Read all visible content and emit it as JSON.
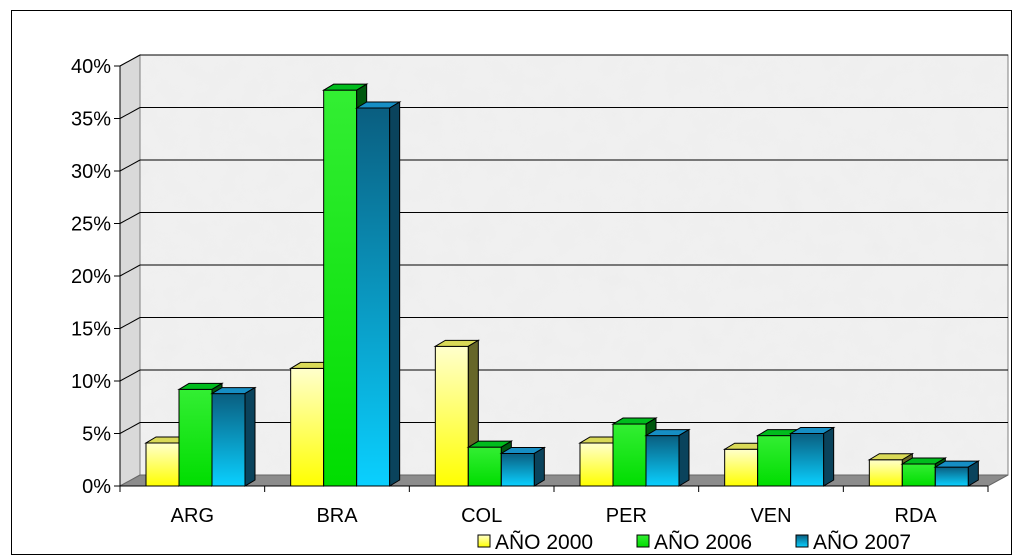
{
  "chart_data": {
    "type": "bar",
    "categories": [
      "ARG",
      "BRA",
      "COL",
      "PER",
      "VEN",
      "RDA"
    ],
    "series": [
      {
        "name": "AÑO 2000",
        "values": [
          4.1,
          11.2,
          13.3,
          4.1,
          3.5,
          2.5
        ],
        "color": "#ffff66"
      },
      {
        "name": "AÑO 2006",
        "values": [
          9.2,
          37.7,
          3.7,
          5.9,
          4.8,
          2.1
        ],
        "color": "#00dd22"
      },
      {
        "name": "AÑO 2007",
        "values": [
          8.8,
          36.0,
          3.1,
          4.8,
          5.0,
          1.8
        ],
        "color": "#1aa7e6"
      }
    ],
    "y_ticks": [
      "0%",
      "5%",
      "10%",
      "15%",
      "20%",
      "25%",
      "30%",
      "35%",
      "40%"
    ],
    "ylim": [
      0,
      40
    ],
    "y_unit": "%",
    "grid": true,
    "legend_position": "bottom-right",
    "title": "",
    "xlabel": "",
    "ylabel": ""
  }
}
